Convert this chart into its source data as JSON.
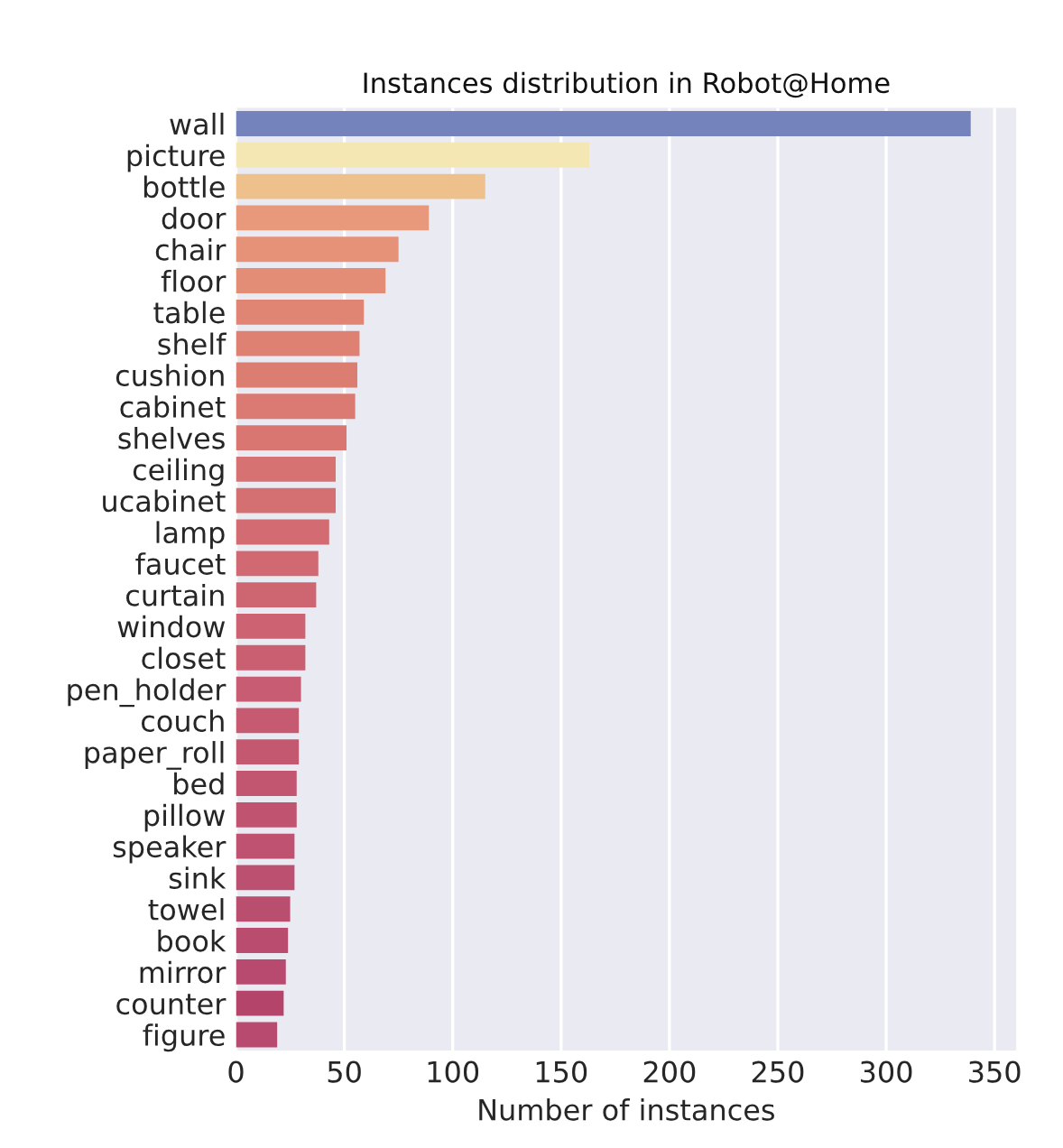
{
  "chart_data": {
    "type": "bar",
    "orientation": "horizontal",
    "title": "Instances distribution in Robot@Home",
    "xlabel": "Number of instances",
    "categories": [
      "wall",
      "picture",
      "bottle",
      "door",
      "chair",
      "floor",
      "table",
      "shelf",
      "cushion",
      "cabinet",
      "shelves",
      "ceiling",
      "ucabinet",
      "lamp",
      "faucet",
      "curtain",
      "window",
      "closet",
      "pen_holder",
      "couch",
      "paper_roll",
      "bed",
      "pillow",
      "speaker",
      "sink",
      "towel",
      "book",
      "mirror",
      "counter",
      "figure"
    ],
    "values": [
      339,
      163,
      115,
      89,
      75,
      69,
      59,
      57,
      56,
      55,
      51,
      46,
      46,
      43,
      38,
      37,
      32,
      32,
      30,
      29,
      29,
      28,
      28,
      27,
      27,
      25,
      24,
      23,
      22,
      19
    ],
    "colors": [
      "#7483bb",
      "#f4e7b3",
      "#eec18c",
      "#e8987b",
      "#e69278",
      "#e48d76",
      "#e08473",
      "#de8072",
      "#dc7d72",
      "#db7a72",
      "#d97672",
      "#d67272",
      "#d47072",
      "#d26c72",
      "#d06972",
      "#ce6672",
      "#cc6272",
      "#ca5f72",
      "#c85c72",
      "#c65a71",
      "#c45871",
      "#c25671",
      "#c05470",
      "#be5270",
      "#bc5070",
      "#ba4e6f",
      "#b94c6f",
      "#b74a6e",
      "#b5446a",
      "#b84a70"
    ],
    "xlim": [
      0,
      360
    ],
    "xticks": [
      0,
      50,
      100,
      150,
      200,
      250,
      300,
      350
    ],
    "grid": "x"
  }
}
